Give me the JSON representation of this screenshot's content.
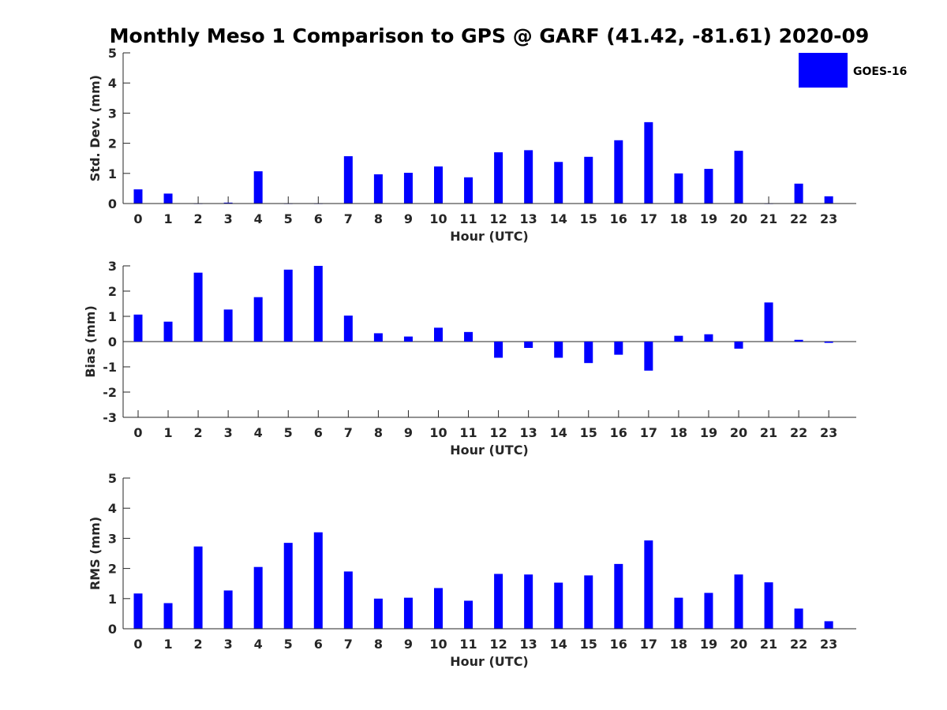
{
  "figure_title": "Monthly Meso 1 Comparison to GPS @ GARF (41.42, -81.61) 2020-09",
  "legend": {
    "label": "GOES-16",
    "color": "#0000ff",
    "placement": "top-right"
  },
  "chart_data": [
    {
      "type": "bar",
      "xlabel": "Hour (UTC)",
      "ylabel": "Std. Dev. (mm)",
      "ylim": [
        0,
        5
      ],
      "yticks": [
        0,
        1,
        2,
        3,
        4,
        5
      ],
      "categories": [
        "0",
        "1",
        "2",
        "3",
        "4",
        "5",
        "6",
        "7",
        "8",
        "9",
        "10",
        "11",
        "12",
        "13",
        "14",
        "15",
        "16",
        "17",
        "18",
        "19",
        "20",
        "21",
        "22",
        "23"
      ],
      "series": [
        {
          "name": "GOES-16",
          "color": "#0000ff",
          "values": [
            0.47,
            0.33,
            0,
            0.03,
            1.07,
            0,
            0,
            1.57,
            0.97,
            1.02,
            1.23,
            0.87,
            1.7,
            1.77,
            1.38,
            1.55,
            2.1,
            2.7,
            1.0,
            1.15,
            1.75,
            0,
            0.66,
            0.24
          ]
        }
      ]
    },
    {
      "type": "bar",
      "xlabel": "Hour (UTC)",
      "ylabel": "Bias (mm)",
      "ylim": [
        -3,
        3
      ],
      "yticks": [
        -3,
        -2,
        -1,
        0,
        1,
        2,
        3
      ],
      "categories": [
        "0",
        "1",
        "2",
        "3",
        "4",
        "5",
        "6",
        "7",
        "8",
        "9",
        "10",
        "11",
        "12",
        "13",
        "14",
        "15",
        "16",
        "17",
        "18",
        "19",
        "20",
        "21",
        "22",
        "23"
      ],
      "series": [
        {
          "name": "GOES-16",
          "color": "#0000ff",
          "values": [
            1.07,
            0.79,
            2.73,
            1.27,
            1.76,
            2.85,
            3.0,
            1.03,
            0.33,
            0.2,
            0.55,
            0.38,
            -0.64,
            -0.25,
            -0.64,
            -0.85,
            -0.52,
            -1.15,
            0.23,
            0.29,
            -0.28,
            1.55,
            0.07,
            -0.05
          ]
        }
      ]
    },
    {
      "type": "bar",
      "xlabel": "Hour (UTC)",
      "ylabel": "RMS (mm)",
      "ylim": [
        0,
        5
      ],
      "yticks": [
        0,
        1,
        2,
        3,
        4,
        5
      ],
      "categories": [
        "0",
        "1",
        "2",
        "3",
        "4",
        "5",
        "6",
        "7",
        "8",
        "9",
        "10",
        "11",
        "12",
        "13",
        "14",
        "15",
        "16",
        "17",
        "18",
        "19",
        "20",
        "21",
        "22",
        "23"
      ],
      "series": [
        {
          "name": "GOES-16",
          "color": "#0000ff",
          "values": [
            1.17,
            0.85,
            2.73,
            1.27,
            2.05,
            2.85,
            3.2,
            1.9,
            1.0,
            1.03,
            1.35,
            0.93,
            1.82,
            1.8,
            1.53,
            1.77,
            2.15,
            2.93,
            1.03,
            1.19,
            1.8,
            1.54,
            0.67,
            0.25
          ]
        }
      ]
    }
  ]
}
